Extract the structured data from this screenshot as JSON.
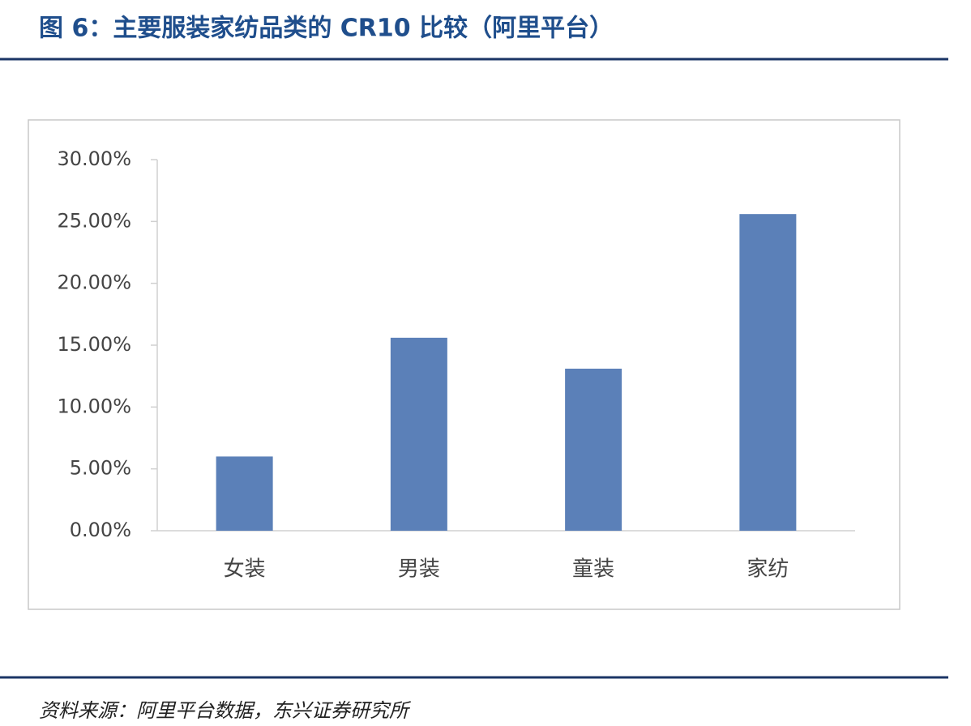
{
  "chart_data": {
    "type": "bar",
    "title": "图 6：主要服装家纺品类的 CR10 比较（阿里平台）",
    "source": "资料来源：阿里平台数据，东兴证券研究所",
    "categories": [
      "女装",
      "男装",
      "童装",
      "家纺"
    ],
    "values": [
      6.0,
      15.6,
      13.1,
      25.6
    ],
    "color": "#5b80b8",
    "ylim": [
      0,
      30
    ],
    "yticks": [
      {
        "value": 0,
        "label": "0.00%"
      },
      {
        "value": 5,
        "label": "5.00%"
      },
      {
        "value": 10,
        "label": "10.00%"
      },
      {
        "value": 15,
        "label": "15.00%"
      },
      {
        "value": 20,
        "label": "20.00%"
      },
      {
        "value": 25,
        "label": "25.00%"
      },
      {
        "value": 30,
        "label": "30.00%"
      }
    ],
    "grid": false
  }
}
